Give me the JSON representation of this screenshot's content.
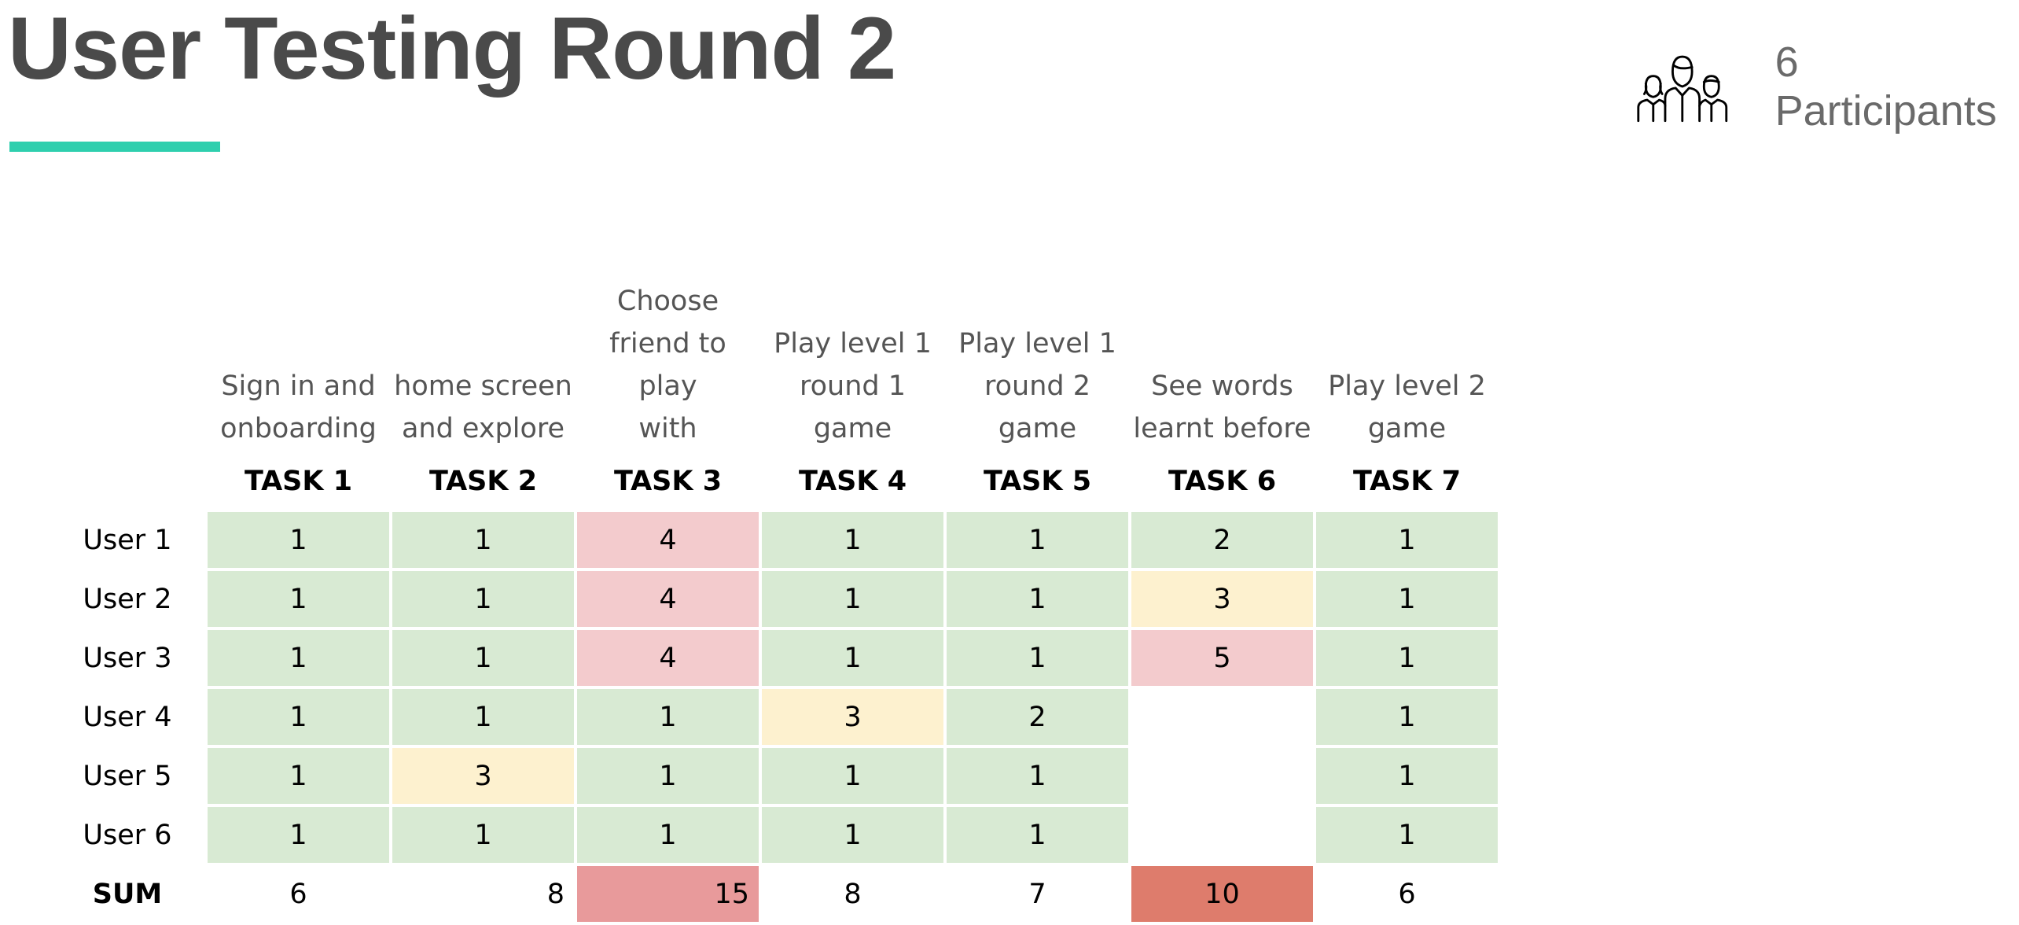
{
  "title": "User Testing Round 2",
  "accent_color": "#2ecfae",
  "participants": {
    "icon": "users-group-icon",
    "label": "6 Participants"
  },
  "table": {
    "tasks": [
      {
        "label": "TASK 1",
        "desc": [
          "Sign in and",
          "onboarding"
        ]
      },
      {
        "label": "TASK 2",
        "desc": [
          "home screen",
          "and explore"
        ]
      },
      {
        "label": "TASK 3",
        "desc": [
          "Choose",
          "friend to play",
          "with"
        ]
      },
      {
        "label": "TASK 4",
        "desc": [
          "Play level 1",
          "round 1",
          "game"
        ]
      },
      {
        "label": "TASK 5",
        "desc": [
          "Play level 1",
          "round 2",
          "game"
        ]
      },
      {
        "label": "TASK 6",
        "desc": [
          "See words",
          "learnt before"
        ]
      },
      {
        "label": "TASK 7",
        "desc": [
          "Play level 2",
          "game"
        ]
      }
    ],
    "rows": [
      {
        "user": "User 1",
        "values": [
          "1",
          "1",
          "4",
          "1",
          "1",
          "2",
          "1"
        ]
      },
      {
        "user": "User 2",
        "values": [
          "1",
          "1",
          "4",
          "1",
          "1",
          "3",
          "1"
        ]
      },
      {
        "user": "User 3",
        "values": [
          "1",
          "1",
          "4",
          "1",
          "1",
          "5",
          "1"
        ]
      },
      {
        "user": "User 4",
        "values": [
          "1",
          "1",
          "1",
          "3",
          "2",
          "",
          "1"
        ]
      },
      {
        "user": "User 5",
        "values": [
          "1",
          "3",
          "1",
          "1",
          "1",
          "",
          "1"
        ]
      },
      {
        "user": "User 6",
        "values": [
          "1",
          "1",
          "1",
          "1",
          "1",
          "",
          "1"
        ]
      }
    ],
    "sum": {
      "label": "SUM",
      "values": [
        "6",
        "8",
        "15",
        "8",
        "7",
        "10",
        "6"
      ]
    }
  },
  "colors": {
    "easy": "#d8ead3",
    "medium": "#fdf1cf",
    "hard": "#f3cbcd",
    "empty": "#ffffff",
    "sum_high": "#e89a9b",
    "sum_highest": "#de7c6c"
  }
}
